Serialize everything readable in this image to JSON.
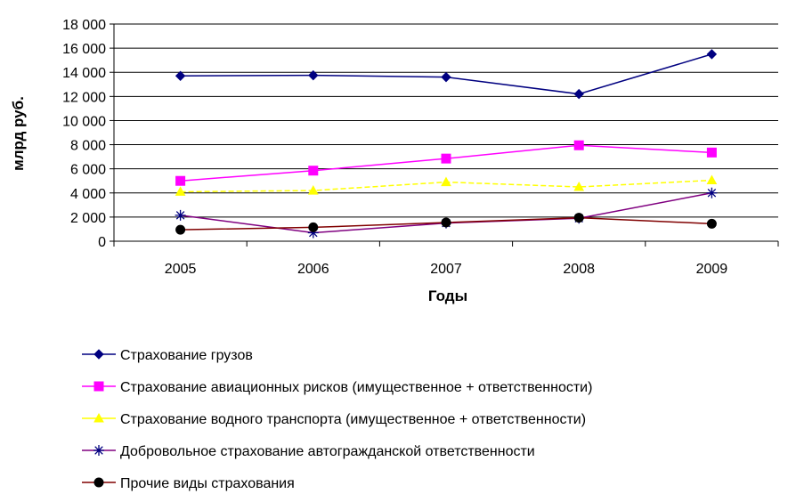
{
  "chart_data": {
    "type": "line",
    "title": "",
    "xlabel": "Годы",
    "ylabel": "млрд руб.",
    "categories": [
      "2005",
      "2006",
      "2007",
      "2008",
      "2009"
    ],
    "ylim": [
      0,
      18000
    ],
    "yticks": [
      0,
      2000,
      4000,
      6000,
      8000,
      10000,
      12000,
      14000,
      16000,
      18000
    ],
    "ytick_labels": [
      "0",
      "2 000",
      "4 000",
      "6 000",
      "8 000",
      "10 000",
      "12 000",
      "14 000",
      "16 000",
      "18 000"
    ],
    "grid": "horizontal",
    "legend_position": "bottom",
    "series": [
      {
        "name": "Страхование грузов",
        "color": "#000080",
        "marker": "diamond",
        "marker_color": "#000080",
        "values": [
          13700,
          13750,
          13600,
          12200,
          15500
        ]
      },
      {
        "name": "Страхование авиационных рисков (имущественное + ответственности)",
        "color": "#FF00FF",
        "marker": "square",
        "marker_color": "#FF00FF",
        "values": [
          5000,
          5850,
          6850,
          7950,
          7350
        ]
      },
      {
        "name": "Страхование водного транспорта (имущественное + ответственности)",
        "color": "#FFFF00",
        "marker": "triangle",
        "marker_color": "#FFFF00",
        "values": [
          4100,
          4200,
          4900,
          4500,
          5050
        ]
      },
      {
        "name": "Добровольное страхование автогражданской ответственности",
        "color": "#800080",
        "marker": "star",
        "marker_color": "#000080",
        "values": [
          2150,
          700,
          1500,
          1900,
          4000
        ]
      },
      {
        "name": "Прочие виды страхования",
        "color": "#800000",
        "marker": "circle",
        "marker_color": "#000000",
        "values": [
          950,
          1150,
          1550,
          1950,
          1450
        ]
      }
    ]
  }
}
